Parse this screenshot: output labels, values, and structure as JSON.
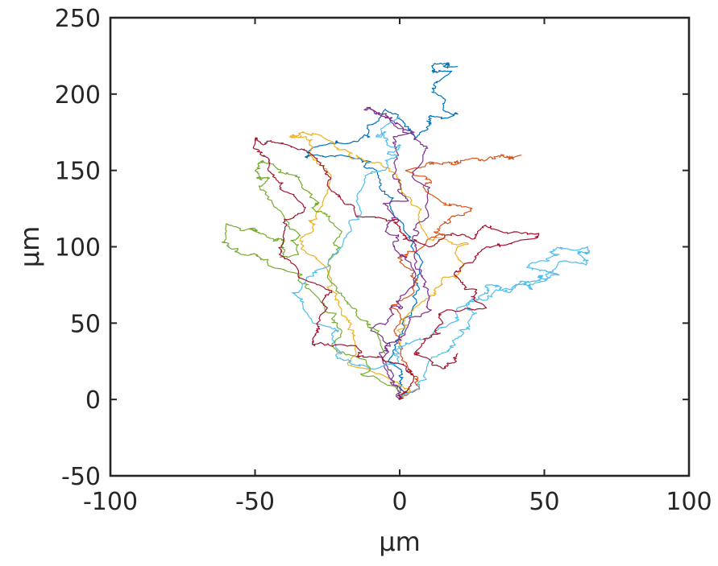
{
  "chart_data": {
    "type": "line",
    "title": "",
    "xlabel": "μm",
    "ylabel": "μm",
    "xlim": [
      -100,
      100
    ],
    "ylim": [
      -50,
      250
    ],
    "xticks": [
      -100,
      -50,
      0,
      50,
      100
    ],
    "yticks": [
      -50,
      0,
      50,
      100,
      150,
      200,
      250
    ],
    "xtick_labels": [
      "-100",
      "-50",
      "0",
      "50",
      "100"
    ],
    "ytick_labels": [
      "-50",
      "0",
      "50",
      "100",
      "150",
      "200",
      "250"
    ],
    "grid": false,
    "legend": "none",
    "series": [
      {
        "color": "#0072BD",
        "anchors": [
          [
            0,
            0
          ],
          [
            -4,
            25
          ],
          [
            4,
            55
          ],
          [
            8,
            90
          ],
          [
            -2,
            120
          ],
          [
            -8,
            150
          ],
          [
            -20,
            160
          ],
          [
            -30,
            165
          ],
          [
            -14,
            170
          ],
          [
            -5,
            190
          ],
          [
            5,
            170
          ],
          [
            10,
            185
          ],
          [
            15,
            190
          ],
          [
            18,
            215
          ],
          [
            12,
            220
          ],
          [
            20,
            218
          ]
        ]
      },
      {
        "color": "#D95319",
        "anchors": [
          [
            0,
            0
          ],
          [
            3,
            20
          ],
          [
            -2,
            45
          ],
          [
            5,
            70
          ],
          [
            0,
            90
          ],
          [
            8,
            100
          ],
          [
            15,
            115
          ],
          [
            25,
            125
          ],
          [
            10,
            135
          ],
          [
            2,
            150
          ],
          [
            15,
            155
          ],
          [
            25,
            158
          ],
          [
            35,
            160
          ],
          [
            42,
            160
          ]
        ]
      },
      {
        "color": "#EDB120",
        "anchors": [
          [
            0,
            0
          ],
          [
            -5,
            15
          ],
          [
            -15,
            30
          ],
          [
            -20,
            55
          ],
          [
            -25,
            85
          ],
          [
            -30,
            110
          ],
          [
            -25,
            135
          ],
          [
            -30,
            165
          ],
          [
            -38,
            172
          ],
          [
            -25,
            170
          ],
          [
            -15,
            160
          ],
          [
            0,
            140
          ],
          [
            10,
            105
          ],
          [
            20,
            100
          ],
          [
            15,
            80
          ],
          [
            5,
            60
          ],
          [
            0,
            35
          ]
        ]
      },
      {
        "color": "#7E2F8E",
        "anchors": [
          [
            0,
            0
          ],
          [
            -5,
            20
          ],
          [
            -10,
            45
          ],
          [
            -3,
            60
          ],
          [
            5,
            75
          ],
          [
            0,
            95
          ],
          [
            -5,
            110
          ],
          [
            3,
            130
          ],
          [
            -2,
            155
          ],
          [
            5,
            175
          ],
          [
            -5,
            185
          ],
          [
            -10,
            190
          ],
          [
            0,
            180
          ],
          [
            8,
            160
          ],
          [
            10,
            120
          ],
          [
            5,
            95
          ],
          [
            10,
            65
          ],
          [
            2,
            45
          ],
          [
            -5,
            25
          ],
          [
            0,
            0
          ]
        ]
      },
      {
        "color": "#77AC30",
        "anchors": [
          [
            0,
            5
          ],
          [
            -10,
            20
          ],
          [
            -20,
            45
          ],
          [
            -30,
            70
          ],
          [
            -40,
            85
          ],
          [
            -55,
            95
          ],
          [
            -60,
            115
          ],
          [
            -50,
            110
          ],
          [
            -40,
            105
          ],
          [
            -35,
            95
          ],
          [
            -40,
            120
          ],
          [
            -45,
            145
          ],
          [
            -50,
            150
          ],
          [
            -45,
            155
          ],
          [
            -35,
            145
          ],
          [
            -30,
            125
          ],
          [
            -20,
            110
          ],
          [
            -25,
            80
          ],
          [
            -15,
            55
          ],
          [
            -5,
            30
          ]
        ]
      },
      {
        "color": "#4DBEEE",
        "anchors": [
          [
            0,
            0
          ],
          [
            10,
            25
          ],
          [
            20,
            40
          ],
          [
            25,
            55
          ],
          [
            30,
            65
          ],
          [
            40,
            75
          ],
          [
            48,
            80
          ],
          [
            55,
            90
          ],
          [
            62,
            95
          ],
          [
            65,
            100
          ],
          [
            55,
            95
          ],
          [
            48,
            85
          ],
          [
            52,
            80
          ],
          [
            45,
            75
          ],
          [
            38,
            70
          ],
          [
            30,
            75
          ],
          [
            20,
            60
          ],
          [
            10,
            40
          ],
          [
            0,
            30
          ],
          [
            -10,
            20
          ],
          [
            -20,
            30
          ],
          [
            -30,
            50
          ],
          [
            -35,
            70
          ],
          [
            -20,
            100
          ],
          [
            -15,
            130
          ],
          [
            -5,
            150
          ],
          [
            0,
            165
          ],
          [
            -5,
            175
          ],
          [
            0,
            185
          ]
        ]
      },
      {
        "color": "#A2142F",
        "anchors": [
          [
            0,
            0
          ],
          [
            5,
            15
          ],
          [
            -5,
            25
          ],
          [
            -15,
            35
          ],
          [
            -30,
            40
          ],
          [
            -25,
            60
          ],
          [
            -35,
            80
          ],
          [
            -40,
            110
          ],
          [
            -35,
            130
          ],
          [
            -45,
            155
          ],
          [
            -50,
            170
          ],
          [
            -42,
            168
          ],
          [
            -30,
            160
          ],
          [
            -25,
            140
          ],
          [
            -15,
            120
          ],
          [
            0,
            110
          ],
          [
            10,
            100
          ],
          [
            25,
            105
          ],
          [
            35,
            110
          ],
          [
            45,
            105
          ],
          [
            30,
            100
          ],
          [
            20,
            80
          ],
          [
            30,
            60
          ],
          [
            15,
            50
          ],
          [
            5,
            30
          ],
          [
            15,
            20
          ],
          [
            20,
            30
          ]
        ]
      }
    ]
  }
}
